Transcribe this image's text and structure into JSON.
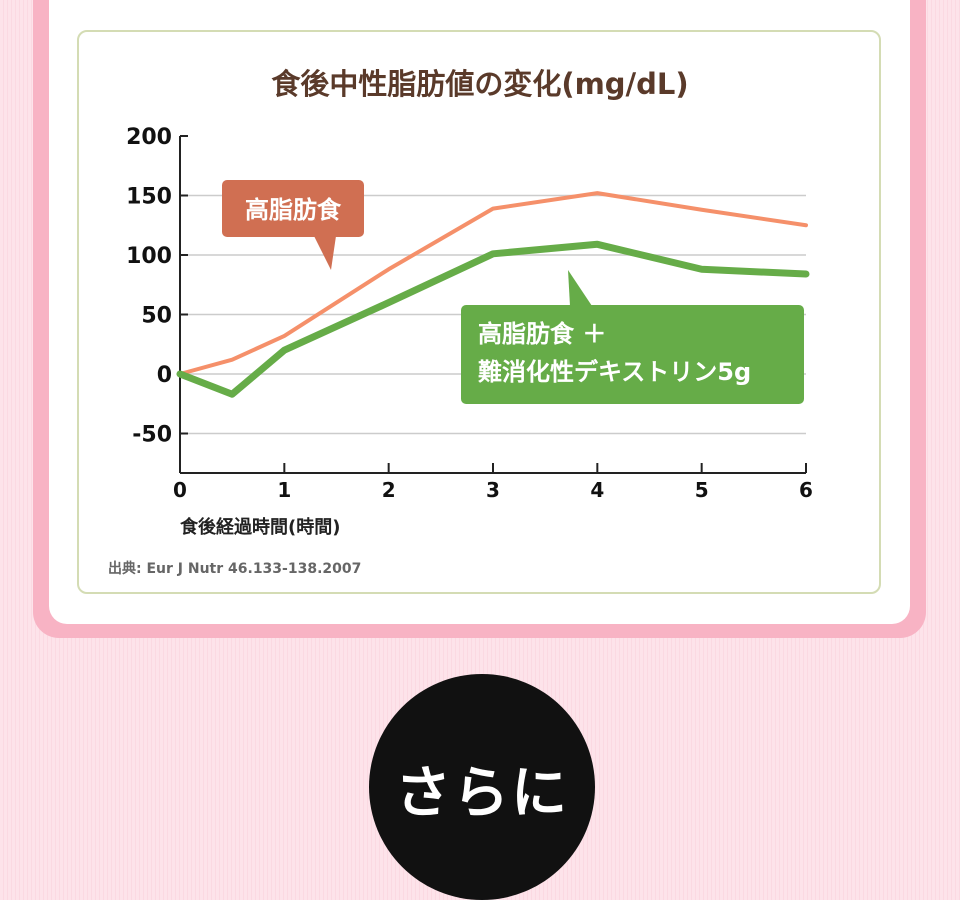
{
  "chart_data": {
    "type": "line",
    "title": "食後中性脂肪値の変化(mg/dL)",
    "xlabel": "食後経過時間(時間)",
    "ylabel": "",
    "xlim": [
      0,
      6
    ],
    "ylim": [
      -80,
      200
    ],
    "yticks": [
      200,
      150,
      100,
      50,
      0,
      -50
    ],
    "xticks": [
      0,
      1,
      2,
      3,
      4,
      5,
      6
    ],
    "grid": true,
    "series": [
      {
        "name": "高脂肪食",
        "color": "#f5906a",
        "label_bg": "#d06f52",
        "x": [
          0,
          0.5,
          1,
          2,
          3,
          4,
          5,
          6
        ],
        "values": [
          0,
          12,
          32,
          88,
          139,
          152,
          138,
          125
        ]
      },
      {
        "name": "高脂肪食 ＋ 難消化性デキストリン5g",
        "name_lines": [
          "高脂肪食 ＋",
          "難消化性デキストリン5g"
        ],
        "color": "#66ac48",
        "label_bg": "#66ac48",
        "x": [
          0,
          0.5,
          1,
          2,
          3,
          4,
          5,
          6
        ],
        "values": [
          0,
          -17,
          20,
          60,
          101,
          109,
          88,
          84
        ]
      }
    ],
    "source": "出典: Eur J Nutr 46.133-138.2007"
  },
  "bottom": {
    "label": "さらに"
  }
}
